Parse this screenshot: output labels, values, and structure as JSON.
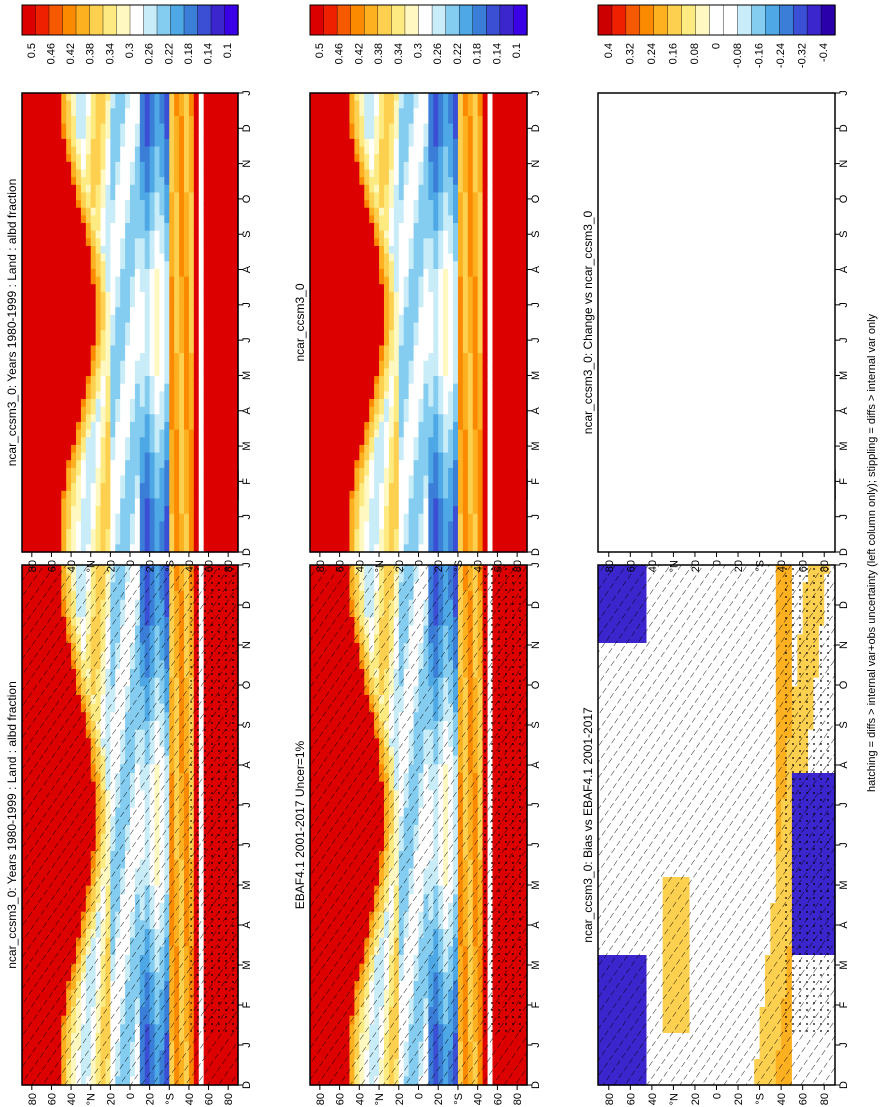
{
  "footnote": "hatching = diffs > internal var+obs uncertainty (left column only); stippling = diffs > internal var only",
  "colors": {
    "albedo_scale": [
      "#dd0000",
      "#ee2000",
      "#f55a00",
      "#fb8a00",
      "#fdb020",
      "#fdd050",
      "#fdea80",
      "#fff8c0",
      "#ffffff",
      "#c8ecf8",
      "#84cdf0",
      "#4ea8e6",
      "#3b7ed8",
      "#3a4fd4",
      "#3a26cc",
      "#3a00e6"
    ],
    "diff_scale": [
      "#cc0000",
      "#ee2000",
      "#f55a00",
      "#fb8a00",
      "#fdb020",
      "#fdd050",
      "#fdea80",
      "#fff8c0",
      "#ffffff",
      "#ffffff",
      "#c8ecf8",
      "#84cdf0",
      "#4ea8e6",
      "#3b7ed8",
      "#3a4fd4",
      "#3a26cc",
      "#2a00aa"
    ]
  },
  "chart_data": [
    {
      "type": "heatmap",
      "title": "ncar_ccsm3_0: Years 1980-1999 : Land : albd fraction",
      "months": [
        "D",
        "J",
        "F",
        "M",
        "A",
        "M",
        "J",
        "J",
        "A",
        "S",
        "O",
        "N",
        "D",
        "J"
      ],
      "lat_ticks": [
        "80",
        "60",
        "40",
        "°N",
        "20",
        "0",
        "20",
        "°S",
        "40",
        "60",
        "80"
      ],
      "colorbar_labels": [
        "0.5",
        "0.46",
        "0.42",
        "0.38",
        "0.34",
        "0.3",
        "0.26",
        "0.22",
        "0.18",
        "0.14",
        "0.1"
      ],
      "hatched": true
    },
    {
      "type": "heatmap",
      "title": "EBAF4.1 2001-2017 Uncer=1%",
      "months": [
        "D",
        "J",
        "F",
        "M",
        "A",
        "M",
        "J",
        "J",
        "A",
        "S",
        "O",
        "N",
        "D",
        "J"
      ],
      "lat_ticks": [
        "80",
        "60",
        "40",
        "°N",
        "20",
        "0",
        "20",
        "°S",
        "40",
        "60",
        "80"
      ],
      "colorbar_labels": [
        "0.5",
        "0.46",
        "0.42",
        "0.38",
        "0.34",
        "0.3",
        "0.26",
        "0.22",
        "0.18",
        "0.14",
        "0.1"
      ],
      "hatched": true
    },
    {
      "type": "heatmap",
      "title": "ncar_ccsm3_0: Bias vs EBAF4.1 2001-2017",
      "months": [
        "D",
        "J",
        "F",
        "M",
        "A",
        "M",
        "J",
        "J",
        "A",
        "S",
        "O",
        "N",
        "D",
        "J"
      ],
      "lat_ticks": [
        "80",
        "60",
        "40",
        "°N",
        "20",
        "0",
        "20",
        "°S",
        "40",
        "60",
        "80"
      ],
      "colorbar_labels": [
        "0.4",
        "0.32",
        "0.24",
        "0.16",
        "0.08",
        "0",
        "-0.08",
        "-0.16",
        "-0.24",
        "-0.32",
        "-0.4"
      ],
      "hatched": true
    },
    {
      "type": "heatmap",
      "title": "ncar_ccsm3_0: Years 1980-1999 : Land : albd fraction",
      "months": [
        "D",
        "J",
        "F",
        "M",
        "A",
        "M",
        "J",
        "J",
        "A",
        "S",
        "O",
        "N",
        "D",
        "J"
      ],
      "lat_ticks": [
        "80",
        "60",
        "40",
        "°N",
        "20",
        "0",
        "20",
        "°S",
        "40",
        "60",
        "80"
      ],
      "colorbar_labels": [
        "0.5",
        "0.46",
        "0.42",
        "0.38",
        "0.34",
        "0.3",
        "0.26",
        "0.22",
        "0.18",
        "0.14",
        "0.1"
      ],
      "hatched": false
    },
    {
      "type": "heatmap",
      "title": "ncar_ccsm3_0",
      "months": [
        "D",
        "J",
        "F",
        "M",
        "A",
        "M",
        "J",
        "J",
        "A",
        "S",
        "O",
        "N",
        "D",
        "J"
      ],
      "lat_ticks": [
        "80",
        "60",
        "40",
        "°N",
        "20",
        "0",
        "20",
        "°S",
        "40",
        "60",
        "80"
      ],
      "colorbar_labels": [
        "0.5",
        "0.46",
        "0.42",
        "0.38",
        "0.34",
        "0.3",
        "0.26",
        "0.22",
        "0.18",
        "0.14",
        "0.1"
      ],
      "hatched": false
    },
    {
      "type": "heatmap",
      "title": "ncar_ccsm3_0: Change vs ncar_ccsm3_0",
      "months": [
        "D",
        "J",
        "F",
        "M",
        "A",
        "M",
        "J",
        "J",
        "A",
        "S",
        "O",
        "N",
        "D",
        "J"
      ],
      "lat_ticks": [
        "80",
        "60",
        "40",
        "°N",
        "20",
        "0",
        "20",
        "°S",
        "40",
        "60",
        "80"
      ],
      "colorbar_labels": [
        "0.4",
        "0.32",
        "0.24",
        "0.16",
        "0.08",
        "0",
        "-0.08",
        "-0.16",
        "-0.24",
        "-0.32",
        "-0.4"
      ],
      "hatched": false,
      "empty": true
    }
  ]
}
